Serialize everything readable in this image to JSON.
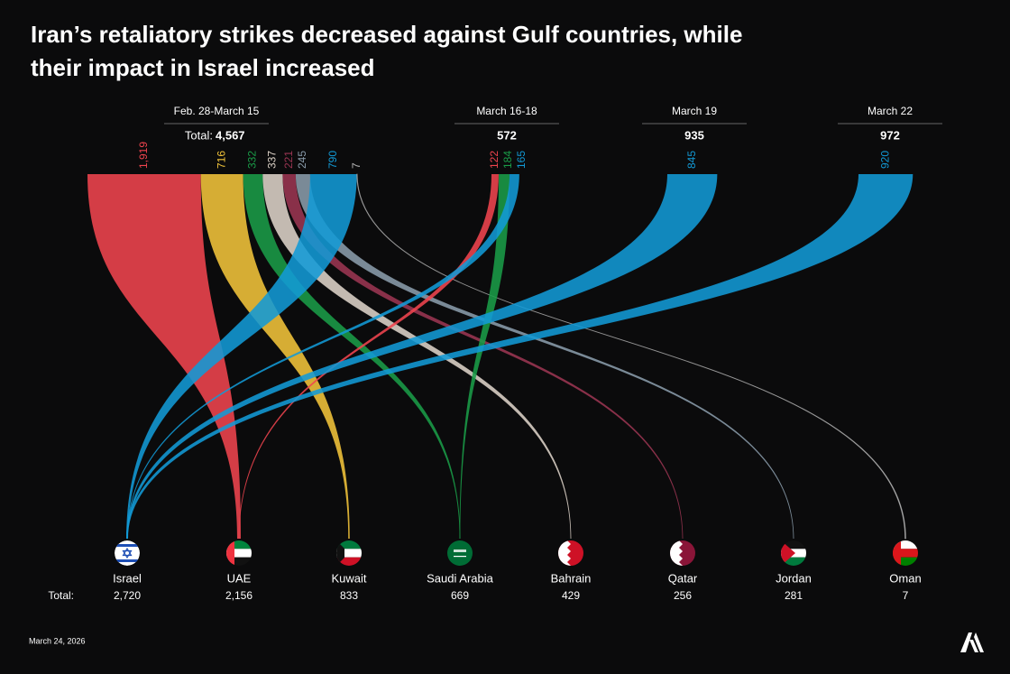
{
  "chart_data": {
    "type": "sankey",
    "title": "Iran’s retaliatory strikes decreased against Gulf countries, while their impact in Israel increased",
    "categories": [
      "Feb. 28-March 15",
      "March 16-18",
      "March 19",
      "March 22"
    ],
    "total_label": "Total:",
    "totals": [
      {
        "value": 4567,
        "label": "4,567"
      },
      572,
      935,
      972
    ],
    "series": [
      {
        "name": "Israel",
        "color": "#129ad6",
        "values": [
          790,
          165,
          845,
          920
        ],
        "total": {
          "value": 2720,
          "label": "2,720"
        }
      },
      {
        "name": "UAE",
        "color": "#f0444e",
        "values": [
          1919,
          122,
          null,
          null
        ],
        "value_labels": [
          "1,919",
          null,
          null,
          null
        ],
        "total": {
          "value": 2156,
          "label": "2,156"
        }
      },
      {
        "name": "Kuwait",
        "color": "#f2c43a",
        "values": [
          716,
          null,
          null,
          null
        ],
        "total": 833
      },
      {
        "name": "Saudi Arabia",
        "color": "#1a9c48",
        "values": [
          332,
          184,
          null,
          null
        ],
        "total": 669
      },
      {
        "name": "Bahrain",
        "color": "#ddd3c8",
        "values": [
          337,
          null,
          null,
          null
        ],
        "total": 429
      },
      {
        "name": "Qatar",
        "color": "#9b3552",
        "values": [
          221,
          null,
          null,
          null
        ],
        "total": 256
      },
      {
        "name": "Jordan",
        "color": "#8a9cab",
        "values": [
          245,
          null,
          null,
          null
        ],
        "total": 281
      },
      {
        "name": "Oman",
        "color": "#b5b5b5",
        "values": [
          7,
          null,
          null,
          null
        ],
        "total": 7
      }
    ],
    "date": "March 24, 2026"
  }
}
